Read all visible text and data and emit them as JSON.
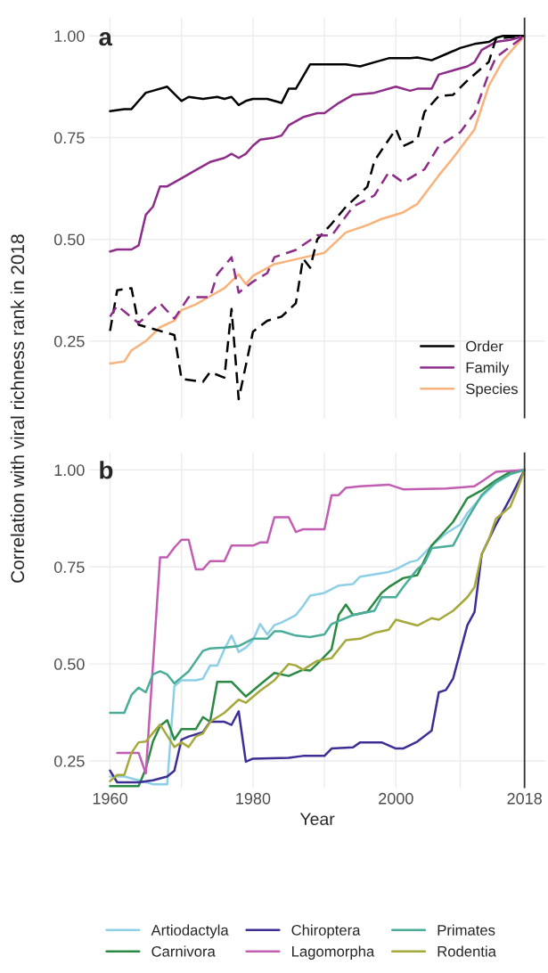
{
  "chart_data": [
    {
      "type": "line",
      "title": "a",
      "ylabel": "Correlation with viral richness rank in 2018",
      "xlim": [
        1957.1,
        2020.9
      ],
      "ylim": [
        0.06,
        1.045
      ],
      "xticks": [
        1960,
        {
          "value": 1970,
          "label": null
        },
        1980,
        {
          "value": 1990,
          "label": null
        },
        2000,
        {
          "value": 2009,
          "label": null
        },
        2018
      ],
      "yticks": [
        {
          "value": 0.25,
          "label": "0.25"
        },
        {
          "value": 0.5,
          "label": "0.50"
        },
        {
          "value": 0.75,
          "label": "0.75"
        },
        {
          "value": 1.0,
          "label": "1.00"
        }
      ],
      "tick_labels": "y",
      "grid": true,
      "legend": "bottom right",
      "ref_lines": [
        {
          "axis": "x",
          "value": 2018,
          "color": "#333333"
        }
      ],
      "series": [
        {
          "name": "Order",
          "color": "#000000",
          "x": [
            1960,
            1962,
            1963,
            1964,
            1965,
            1966,
            1968,
            1970,
            1971,
            1973,
            1975,
            1976,
            1977,
            1978,
            1979,
            1980,
            1982,
            1984,
            1985,
            1986,
            1987,
            1988,
            1990,
            1993,
            1995,
            1997,
            1999,
            2002,
            2003,
            2005,
            2007,
            2009,
            2011,
            2013,
            2014,
            2015,
            2018
          ],
          "values": [
            0.815,
            0.82,
            0.82,
            0.84,
            0.86,
            0.865,
            0.875,
            0.84,
            0.85,
            0.845,
            0.85,
            0.845,
            0.85,
            0.83,
            0.84,
            0.845,
            0.845,
            0.835,
            0.87,
            0.87,
            0.9,
            0.93,
            0.93,
            0.93,
            0.925,
            0.935,
            0.945,
            0.945,
            0.947,
            0.94,
            0.955,
            0.97,
            0.98,
            0.985,
            0.995,
            1.0,
            1.0
          ]
        },
        {
          "name": "Family",
          "color": "#8e2c8a",
          "x": [
            1960,
            1961,
            1963,
            1964,
            1965,
            1966,
            1967,
            1968,
            1970,
            1972,
            1974,
            1976,
            1977,
            1978,
            1979,
            1980,
            1981,
            1983,
            1984,
            1985,
            1987,
            1989,
            1990,
            1992,
            1994,
            1997,
            2000,
            2002,
            2003,
            2005,
            2006,
            2010,
            2011,
            2012,
            2014,
            2016,
            2018
          ],
          "values": [
            0.47,
            0.475,
            0.475,
            0.485,
            0.56,
            0.58,
            0.63,
            0.63,
            0.65,
            0.67,
            0.69,
            0.7,
            0.71,
            0.7,
            0.71,
            0.73,
            0.745,
            0.75,
            0.755,
            0.78,
            0.8,
            0.81,
            0.81,
            0.835,
            0.855,
            0.86,
            0.875,
            0.865,
            0.87,
            0.87,
            0.905,
            0.925,
            0.935,
            0.965,
            0.985,
            0.99,
            1.0
          ]
        },
        {
          "name": "Species",
          "color": "#f9b27a",
          "x": [
            1960,
            1962,
            1963,
            1965,
            1967,
            1969,
            1970,
            1972,
            1974,
            1976,
            1978,
            1979,
            1980,
            1983,
            1987,
            1990,
            1993,
            1996,
            1998,
            2001,
            2003,
            2006,
            2008,
            2011,
            2013,
            2015,
            2018
          ],
          "values": [
            0.195,
            0.2,
            0.227,
            0.25,
            0.284,
            0.3,
            0.326,
            0.34,
            0.36,
            0.38,
            0.414,
            0.39,
            0.41,
            0.439,
            0.455,
            0.467,
            0.517,
            0.535,
            0.55,
            0.566,
            0.587,
            0.657,
            0.7,
            0.77,
            0.877,
            0.94,
            1.0
          ]
        },
        {
          "color": "#000000",
          "line_style": "dashed",
          "x": [
            1960,
            1961,
            1963,
            1964,
            1967,
            1969,
            1970,
            1973,
            1974,
            1976,
            1977,
            1978,
            1980,
            1982,
            1984,
            1986,
            1987,
            1988,
            1989,
            1991,
            1993,
            1996,
            1997,
            2000,
            2001,
            2003,
            2004,
            2006,
            2008,
            2010,
            2013,
            2014,
            2018
          ],
          "values": [
            0.275,
            0.375,
            0.38,
            0.29,
            0.275,
            0.265,
            0.157,
            0.15,
            0.174,
            0.16,
            0.329,
            0.107,
            0.273,
            0.3,
            0.31,
            0.343,
            0.453,
            0.43,
            0.5,
            0.538,
            0.58,
            0.629,
            0.693,
            0.771,
            0.729,
            0.745,
            0.813,
            0.852,
            0.855,
            0.89,
            0.936,
            0.993,
            1.0
          ]
        },
        {
          "color": "#8e2c8a",
          "line_style": "dashed",
          "x": [
            1960,
            1961,
            1964,
            1967,
            1969,
            1971,
            1974,
            1975,
            1977,
            1978,
            1980,
            1982,
            1983,
            1986,
            1989,
            1991,
            1994,
            1997,
            1999,
            2001,
            2004,
            2006,
            2009,
            2011,
            2013,
            2014,
            2018
          ],
          "values": [
            0.31,
            0.337,
            0.294,
            0.343,
            0.305,
            0.358,
            0.358,
            0.414,
            0.456,
            0.369,
            0.396,
            0.417,
            0.456,
            0.474,
            0.51,
            0.509,
            0.58,
            0.608,
            0.665,
            0.64,
            0.672,
            0.729,
            0.763,
            0.81,
            0.908,
            0.947,
            1.0
          ]
        }
      ]
    },
    {
      "type": "line",
      "title": "b",
      "xlabel": "Year",
      "xlim": [
        1957.1,
        2020.9
      ],
      "ylim": [
        0.18,
        1.045
      ],
      "xticks": [
        1960,
        {
          "value": 1970,
          "label": null
        },
        1980,
        {
          "value": 1990,
          "label": null
        },
        2000,
        {
          "value": 2009,
          "label": null
        },
        2018
      ],
      "yticks": [
        {
          "value": 0.25,
          "label": "0.25"
        },
        {
          "value": 0.5,
          "label": "0.50"
        },
        {
          "value": 0.75,
          "label": "0.75"
        },
        {
          "value": 1.0,
          "label": "1.00"
        }
      ],
      "grid": true,
      "legend": "bottom",
      "ref_lines": [
        {
          "axis": "x",
          "value": 2018,
          "color": "#333333"
        }
      ],
      "series": [
        {
          "name": "Artiodactyla",
          "color": "#8ecfe8",
          "x": [
            1960,
            1962,
            1964,
            1966,
            1968,
            1969,
            1970,
            1972,
            1973,
            1974,
            1975,
            1976,
            1977,
            1978,
            1979,
            1980,
            1981,
            1982,
            1983,
            1984,
            1986,
            1987,
            1988,
            1990,
            1992,
            1994,
            1995,
            1999,
            2000,
            2002,
            2003,
            2005,
            2007,
            2009,
            2010,
            2012,
            2014,
            2016,
            2018
          ],
          "values": [
            0.21,
            0.21,
            0.2,
            0.19,
            0.19,
            0.443,
            0.458,
            0.458,
            0.462,
            0.496,
            0.496,
            0.538,
            0.573,
            0.531,
            0.542,
            0.561,
            0.603,
            0.576,
            0.6,
            0.607,
            0.626,
            0.649,
            0.676,
            0.683,
            0.702,
            0.706,
            0.725,
            0.737,
            0.744,
            0.763,
            0.767,
            0.805,
            0.836,
            0.859,
            0.889,
            0.931,
            0.966,
            0.989,
            1.0
          ]
        },
        {
          "name": "Carnivora",
          "color": "#2a8a44",
          "x": [
            1960,
            1964,
            1965,
            1966,
            1967,
            1968,
            1969,
            1970,
            1972,
            1973,
            1974,
            1975,
            1977,
            1979,
            1981,
            1983,
            1985,
            1987,
            1988,
            1989,
            1991,
            1992,
            1993,
            1994,
            1996,
            1998,
            1999,
            2001,
            2003,
            2005,
            2008,
            2010,
            2012,
            2014,
            2016,
            2018
          ],
          "values": [
            0.185,
            0.185,
            0.23,
            0.3,
            0.34,
            0.355,
            0.305,
            0.332,
            0.332,
            0.363,
            0.351,
            0.454,
            0.454,
            0.416,
            0.447,
            0.477,
            0.469,
            0.485,
            0.483,
            0.5,
            0.538,
            0.626,
            0.653,
            0.626,
            0.634,
            0.683,
            0.698,
            0.721,
            0.729,
            0.805,
            0.866,
            0.927,
            0.947,
            0.973,
            0.995,
            1.0
          ]
        },
        {
          "name": "Chiroptera",
          "color": "#3b2f96",
          "x": [
            1960,
            1961,
            1964,
            1966,
            1968,
            1969,
            1970,
            1971,
            1973,
            1974,
            1976,
            1977,
            1978,
            1979,
            1980,
            1985,
            1987,
            1990,
            1991,
            1994,
            1995,
            1998,
            2000,
            2001,
            2003,
            2005,
            2006,
            2007,
            2008,
            2009,
            2010,
            2011,
            2012,
            2014,
            2016,
            2018
          ],
          "values": [
            0.225,
            0.195,
            0.195,
            0.2,
            0.21,
            0.225,
            0.305,
            0.313,
            0.324,
            0.351,
            0.351,
            0.343,
            0.378,
            0.248,
            0.256,
            0.258,
            0.263,
            0.263,
            0.282,
            0.285,
            0.298,
            0.298,
            0.282,
            0.282,
            0.3,
            0.328,
            0.427,
            0.433,
            0.462,
            0.531,
            0.6,
            0.634,
            0.782,
            0.859,
            0.927,
            1.0
          ]
        },
        {
          "name": "Lagomorpha",
          "color": "#c35db3",
          "x": [
            1961,
            1964,
            1965,
            1967,
            1968,
            1969,
            1970,
            1971,
            1972,
            1973,
            1974,
            1976,
            1977,
            1980,
            1981,
            1982,
            1983,
            1985,
            1986,
            1987,
            1990,
            1991,
            1992,
            1993,
            1995,
            1999,
            2001,
            2007,
            2011,
            2012,
            2014,
            2018
          ],
          "values": [
            0.271,
            0.271,
            0.218,
            0.775,
            0.775,
            0.8,
            0.82,
            0.82,
            0.744,
            0.744,
            0.765,
            0.765,
            0.805,
            0.805,
            0.813,
            0.813,
            0.878,
            0.878,
            0.84,
            0.847,
            0.847,
            0.935,
            0.935,
            0.954,
            0.958,
            0.962,
            0.95,
            0.952,
            0.958,
            0.97,
            0.995,
            1.0
          ]
        },
        {
          "name": "Primates",
          "color": "#4aad9a",
          "x": [
            1960,
            1962,
            1963,
            1964,
            1965,
            1966,
            1967,
            1968,
            1969,
            1971,
            1973,
            1974,
            1976,
            1978,
            1980,
            1982,
            1983,
            1984,
            1986,
            1988,
            1990,
            1991,
            1994,
            1997,
            1998,
            2000,
            2001,
            2003,
            2004,
            2005,
            2008,
            2010,
            2012,
            2014,
            2016,
            2018
          ],
          "values": [
            0.374,
            0.374,
            0.42,
            0.439,
            0.427,
            0.473,
            0.481,
            0.473,
            0.45,
            0.481,
            0.534,
            0.54,
            0.542,
            0.546,
            0.565,
            0.565,
            0.584,
            0.584,
            0.573,
            0.569,
            0.576,
            0.603,
            0.626,
            0.637,
            0.672,
            0.672,
            0.698,
            0.744,
            0.76,
            0.798,
            0.805,
            0.874,
            0.935,
            0.969,
            0.989,
            1.0
          ]
        },
        {
          "name": "Rodentia",
          "color": "#a5a83a",
          "x": [
            1960,
            1961,
            1962,
            1963,
            1964,
            1965,
            1967,
            1969,
            1970,
            1971,
            1972,
            1973,
            1974,
            1976,
            1978,
            1979,
            1981,
            1983,
            1985,
            1986,
            1987,
            1989,
            1991,
            1993,
            1995,
            1997,
            1999,
            2000,
            2003,
            2005,
            2006,
            2008,
            2010,
            2011,
            2012,
            2013,
            2014,
            2016,
            2017,
            2018
          ],
          "values": [
            0.198,
            0.214,
            0.214,
            0.271,
            0.298,
            0.3,
            0.344,
            0.286,
            0.298,
            0.286,
            0.313,
            0.321,
            0.351,
            0.374,
            0.408,
            0.4,
            0.431,
            0.458,
            0.5,
            0.496,
            0.485,
            0.508,
            0.515,
            0.561,
            0.565,
            0.58,
            0.588,
            0.614,
            0.599,
            0.618,
            0.614,
            0.637,
            0.672,
            0.698,
            0.782,
            0.821,
            0.874,
            0.905,
            0.95,
            1.0
          ]
        }
      ]
    }
  ]
}
